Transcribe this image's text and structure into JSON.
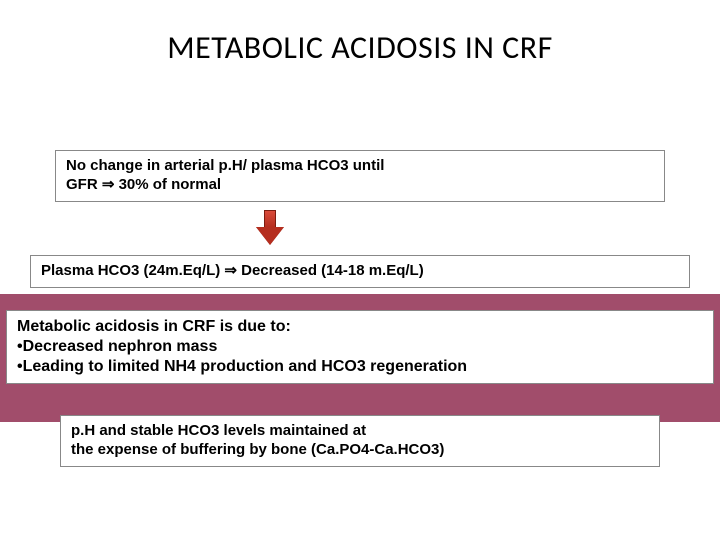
{
  "title": "METABOLIC ACIDOSIS IN CRF",
  "box1_line1": "No change in arterial p.H/ plasma HCO3 until",
  "box1_line2": "GFR ⇒ 30% of normal",
  "box2": "Plasma HCO3 (24m.Eq/L) ⇒ Decreased (14-18 m.Eq/L)",
  "box3_l1": "Metabolic acidosis in CRF is due to:",
  "box3_l2": "•Decreased nephron mass",
  "box3_l3": "•Leading to limited NH4 production and HCO3 regeneration",
  "box4_l1": "p.H and stable HCO3 levels maintained at",
  "box4_l2": "the expense of  buffering by bone (Ca.PO4-Ca.HCO3)",
  "colors": {
    "band": "#a14d6b",
    "arrow": "#b52e1f",
    "background": "#ffffff",
    "text": "#000000"
  },
  "font_sizes": {
    "title": 32,
    "body": 15,
    "box3": 16
  }
}
